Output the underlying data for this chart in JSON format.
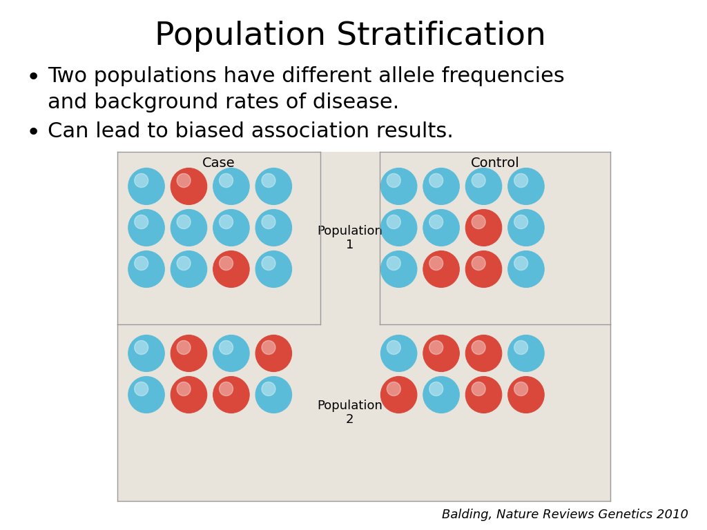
{
  "title": "Population Stratification",
  "bullet1": "Two populations have different allele frequencies\nand background rates of disease.",
  "bullet2": "Can lead to biased association results.",
  "citation": "Balding, Nature Reviews Genetics 2010",
  "bg_color": "#e8e3db",
  "blue": "#5abcd8",
  "red": "#d9483a",
  "case_label": "Case",
  "control_label": "Control",
  "pop1_label": "Population\n1",
  "pop2_label": "Population\n2",
  "pop1_case": [
    [
      "blue",
      "red",
      "blue",
      "blue"
    ],
    [
      "blue",
      "blue",
      "blue",
      "blue"
    ],
    [
      "blue",
      "blue",
      "red",
      "blue"
    ]
  ],
  "pop1_control": [
    [
      "blue",
      "blue",
      "blue",
      "blue"
    ],
    [
      "blue",
      "blue",
      "red",
      "blue"
    ],
    [
      "blue",
      "red",
      "red",
      "blue"
    ]
  ],
  "pop2_case": [
    [
      "blue",
      "red",
      "blue",
      "red"
    ],
    [
      "blue",
      "red",
      "red",
      "blue"
    ]
  ],
  "pop2_control": [
    [
      "blue",
      "red",
      "red",
      "blue"
    ],
    [
      "red",
      "blue",
      "red",
      "red"
    ]
  ],
  "fig_width": 10.24,
  "fig_height": 7.68,
  "dpi": 100
}
